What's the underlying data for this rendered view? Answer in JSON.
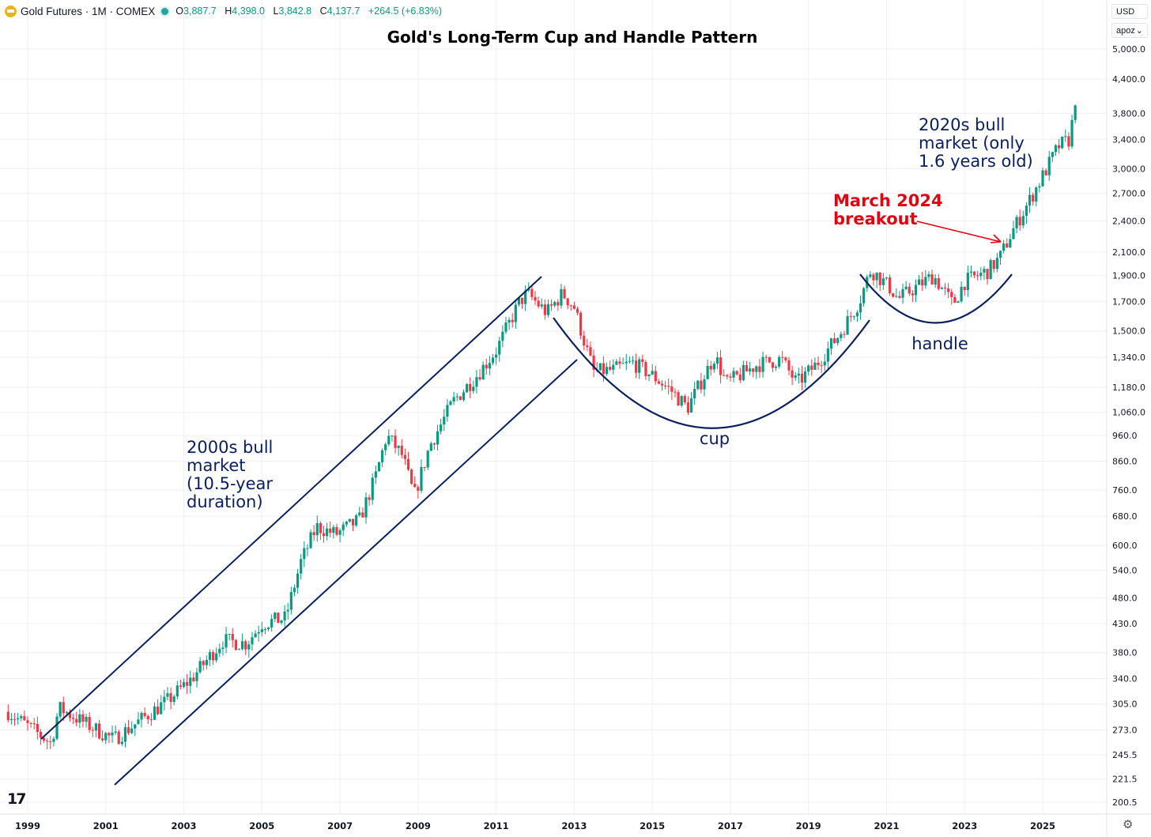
{
  "header": {
    "symbol": "Gold Futures · 1M · COMEX",
    "open_label": "O",
    "open": "3,887.7",
    "high_label": "H",
    "high": "4,398.0",
    "low_label": "L",
    "low": "3,842.8",
    "close_label": "C",
    "close": "4,137.7",
    "change": "+264.5 (+6.83%)"
  },
  "controls": {
    "currency": "USD",
    "scale": "apoz"
  },
  "colors": {
    "up": "#089981",
    "down": "#f23645",
    "navy": "#0a1f5c",
    "red_text": "#e3000f",
    "grid": "#eef0f3"
  },
  "chart_data": {
    "type": "candlestick",
    "title": "Gold's Long-Term Cup and Handle Pattern",
    "x_ticks": [
      "1999",
      "2001",
      "2003",
      "2005",
      "2007",
      "2009",
      "2011",
      "2013",
      "2015",
      "2017",
      "2019",
      "2021",
      "2023",
      "2025"
    ],
    "x_range": [
      1998.5,
      2026.1
    ],
    "y_scale": "log",
    "y_range": [
      190,
      5400
    ],
    "y_ticks": [
      "5,000.0",
      "4,400.0",
      "3,800.0",
      "3,400.0",
      "3,000.0",
      "2,700.0",
      "2,400.0",
      "2,100.0",
      "1,900.0",
      "1,700.0",
      "1,500.0",
      "1,340.0",
      "1,180.0",
      "1,060.0",
      "960.0",
      "860.0",
      "760.0",
      "680.0",
      "600.0",
      "540.0",
      "480.0",
      "430.0",
      "380.0",
      "340.0",
      "305.0",
      "273.0",
      "245.5",
      "221.5",
      "200.5"
    ],
    "price_anchors": [
      [
        1998.5,
        295
      ],
      [
        1999.6,
        258
      ],
      [
        1999.8,
        300
      ],
      [
        2000.5,
        280
      ],
      [
        2001.2,
        262
      ],
      [
        2001.9,
        285
      ],
      [
        2002.6,
        310
      ],
      [
        2003.2,
        340
      ],
      [
        2004.0,
        400
      ],
      [
        2004.6,
        395
      ],
      [
        2005.0,
        430
      ],
      [
        2005.6,
        440
      ],
      [
        2006.0,
        560
      ],
      [
        2006.4,
        650
      ],
      [
        2006.9,
        630
      ],
      [
        2007.5,
        670
      ],
      [
        2007.9,
        800
      ],
      [
        2008.2,
        960
      ],
      [
        2008.6,
        880
      ],
      [
        2008.9,
        740
      ],
      [
        2009.3,
        920
      ],
      [
        2009.9,
        1110
      ],
      [
        2010.5,
        1240
      ],
      [
        2011.0,
        1380
      ],
      [
        2011.6,
        1700
      ],
      [
        2011.8,
        1760
      ],
      [
        2012.3,
        1620
      ],
      [
        2012.7,
        1760
      ],
      [
        2013.0,
        1660
      ],
      [
        2013.3,
        1400
      ],
      [
        2013.5,
        1260
      ],
      [
        2014.0,
        1270
      ],
      [
        2014.5,
        1310
      ],
      [
        2015.0,
        1240
      ],
      [
        2015.5,
        1160
      ],
      [
        2015.9,
        1080
      ],
      [
        2016.6,
        1350
      ],
      [
        2016.9,
        1200
      ],
      [
        2017.7,
        1300
      ],
      [
        2018.3,
        1330
      ],
      [
        2018.7,
        1200
      ],
      [
        2019.2,
        1300
      ],
      [
        2019.8,
        1480
      ],
      [
        2020.3,
        1700
      ],
      [
        2020.6,
        1950
      ],
      [
        2021.1,
        1800
      ],
      [
        2021.3,
        1720
      ],
      [
        2022.2,
        1900
      ],
      [
        2022.7,
        1680
      ],
      [
        2023.0,
        1850
      ],
      [
        2023.6,
        1940
      ],
      [
        2023.9,
        2050
      ],
      [
        2024.2,
        2280
      ],
      [
        2024.7,
        2650
      ],
      [
        2025.1,
        3000
      ],
      [
        2025.4,
        3300
      ],
      [
        2025.7,
        3400
      ],
      [
        2025.85,
        4137.7
      ]
    ],
    "annotations": {
      "bull_2000s": [
        "2000s bull",
        "market",
        "(10.5-year",
        "duration)"
      ],
      "bull_2020s": [
        "2020s bull",
        "market (only",
        "1.6 years old)"
      ],
      "breakout": [
        "March 2024",
        "breakout"
      ],
      "cup": "cup",
      "handle": "handle"
    }
  }
}
